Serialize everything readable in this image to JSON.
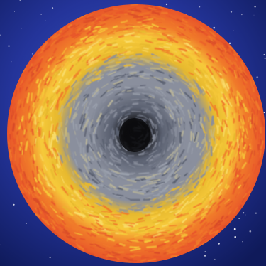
{
  "scene": {
    "subject": "yarn-cake",
    "background": "starry-night-sky",
    "colors": {
      "sky_deep": "#0f1a5a",
      "sky_mid": "#24349a",
      "sky_light": "#3a5ac0",
      "yarn_outer": "#e8552a",
      "yarn_orange": "#f07a2a",
      "yarn_yellow": "#f6c93a",
      "yarn_gold": "#e7b92e",
      "yarn_grey": "#8a8f9d",
      "yarn_slate": "#5a6070",
      "yarn_core": "#121214"
    }
  }
}
